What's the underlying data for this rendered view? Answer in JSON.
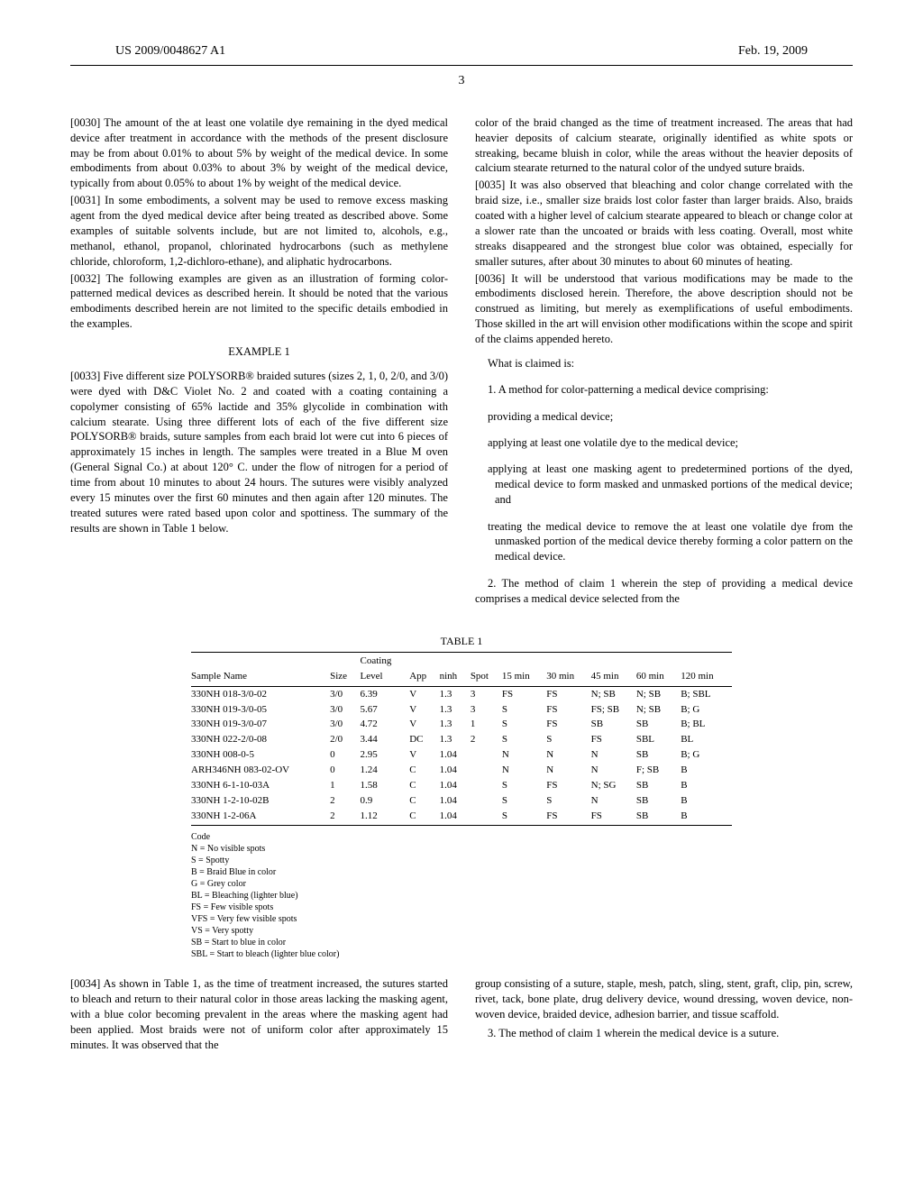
{
  "header": {
    "left": "US 2009/0048627 A1",
    "right": "Feb. 19, 2009",
    "page_number": "3"
  },
  "left_column": {
    "p0030": "[0030]   The amount of the at least one volatile dye remaining in the dyed medical device after treatment in accordance with the methods of the present disclosure may be from about 0.01% to about 5% by weight of the medical device. In some embodiments from about 0.03% to about 3% by weight of the medical device, typically from about 0.05% to about 1% by weight of the medical device.",
    "p0031": "[0031]   In some embodiments, a solvent may be used to remove excess masking agent from the dyed medical device after being treated as described above. Some examples of suitable solvents include, but are not limited to, alcohols, e.g., methanol, ethanol, propanol, chlorinated hydrocarbons (such as methylene chloride, chloroform, 1,2-dichloro-ethane), and aliphatic hydrocarbons.",
    "p0032": "[0032]   The following examples are given as an illustration of forming color-patterned medical devices as described herein. It should be noted that the various embodiments described herein are not limited to the specific details embodied in the examples.",
    "example_title": "EXAMPLE 1",
    "p0033": "[0033]   Five different size POLYSORB® braided sutures (sizes 2, 1, 0, 2/0, and 3/0) were dyed with D&C Violet No. 2 and coated with a coating containing a copolymer consisting of 65% lactide and 35% glycolide in combination with calcium stearate. Using three different lots of each of the five different size POLYSORB® braids, suture samples from each braid lot were cut into 6 pieces of approximately 15 inches in length. The samples were treated in a Blue M oven (General Signal Co.) at about 120° C. under the flow of nitrogen for a period of time from about 10 minutes to about 24 hours. The sutures were visibly analyzed every 15 minutes over the first 60 minutes and then again after 120 minutes. The treated sutures were rated based upon color and spottiness. The summary of the results are shown in Table 1 below."
  },
  "right_column": {
    "cont": "color of the braid changed as the time of treatment increased. The areas that had heavier deposits of calcium stearate, originally identified as white spots or streaking, became bluish in color, while the areas without the heavier deposits of calcium stearate returned to the natural color of the undyed suture braids.",
    "p0035": "[0035]   It was also observed that bleaching and color change correlated with the braid size, i.e., smaller size braids lost color faster than larger braids. Also, braids coated with a higher level of calcium stearate appeared to bleach or change color at a slower rate than the uncoated or braids with less coating. Overall, most white streaks disappeared and the strongest blue color was obtained, especially for smaller sutures, after about 30 minutes to about 60 minutes of heating.",
    "p0036": "[0036]   It will be understood that various modifications may be made to the embodiments disclosed herein. Therefore, the above description should not be construed as limiting, but merely as exemplifications of useful embodiments. Those skilled in the art will envision other modifications within the scope and spirit of the claims appended hereto.",
    "claims_intro": "What is claimed is:",
    "claim1_lead": "1. A method for color-patterning a medical device comprising:",
    "claim1_steps": [
      "providing a medical device;",
      "applying at least one volatile dye to the medical device;",
      "applying at least one masking agent to predetermined portions of the dyed, medical device to form masked and unmasked portions of the medical device; and",
      "treating the medical device to remove the at least one volatile dye from the unmasked portion of the medical device thereby forming a color pattern on the medical device."
    ],
    "claim2": "2. The method of claim 1 wherein the step of providing a medical device comprises a medical device selected from the"
  },
  "table": {
    "title": "TABLE 1",
    "columns": [
      "Sample Name",
      "Size",
      "Coating Level",
      "App",
      "ninh",
      "Spot",
      "15 min",
      "30 min",
      "45 min",
      "60 min",
      "120 min"
    ],
    "rows": [
      [
        "330NH 018-3/0-02",
        "3/0",
        "6.39",
        "V",
        "1.3",
        "3",
        "FS",
        "FS",
        "N; SB",
        "N; SB",
        "B; SBL"
      ],
      [
        "330NH 019-3/0-05",
        "3/0",
        "5.67",
        "V",
        "1.3",
        "3",
        "S",
        "FS",
        "FS; SB",
        "N; SB",
        "B; G"
      ],
      [
        "330NH 019-3/0-07",
        "3/0",
        "4.72",
        "V",
        "1.3",
        "1",
        "S",
        "FS",
        "SB",
        "SB",
        "B; BL"
      ],
      [
        "330NH 022-2/0-08",
        "2/0",
        "3.44",
        "DC",
        "1.3",
        "2",
        "S",
        "S",
        "FS",
        "SBL",
        "BL"
      ],
      [
        "330NH 008-0-5",
        "0",
        "2.95",
        "V",
        "1.04",
        "",
        "N",
        "N",
        "N",
        "SB",
        "B; G"
      ],
      [
        "ARH346NH 083-02-OV",
        "0",
        "1.24",
        "C",
        "1.04",
        "",
        "N",
        "N",
        "N",
        "F; SB",
        "B"
      ],
      [
        "330NH 6-1-10-03A",
        "1",
        "1.58",
        "C",
        "1.04",
        "",
        "S",
        "FS",
        "N; SG",
        "SB",
        "B"
      ],
      [
        "330NH 1-2-10-02B",
        "2",
        "0.9",
        "C",
        "1.04",
        "",
        "S",
        "S",
        "N",
        "SB",
        "B"
      ],
      [
        "330NH 1-2-06A",
        "2",
        "1.12",
        "C",
        "1.04",
        "",
        "S",
        "FS",
        "FS",
        "SB",
        "B"
      ]
    ]
  },
  "code_legend": {
    "title": "Code",
    "lines": [
      "N = No visible spots",
      "S = Spotty",
      "B = Braid Blue in color",
      "G = Grey color",
      "BL = Bleaching (lighter blue)",
      "FS = Few visible spots",
      "VFS = Very few visible spots",
      "VS = Very spotty",
      "SB = Start to blue in color",
      "SBL = Start to bleach (lighter blue color)"
    ]
  },
  "lower_left": {
    "p0034": "[0034]   As shown in Table 1, as the time of treatment increased, the sutures started to bleach and return to their natural color in those areas lacking the masking agent, with a blue color becoming prevalent in the areas where the masking agent had been applied. Most braids were not of uniform color after approximately 15 minutes. It was observed that the"
  },
  "lower_right": {
    "claim2_cont": "group consisting of a suture, staple, mesh, patch, sling, stent, graft, clip, pin, screw, rivet, tack, bone plate, drug delivery device, wound dressing, woven device, non-woven device, braided device, adhesion barrier, and tissue scaffold.",
    "claim3": "3. The method of claim 1 wherein the medical device is a suture."
  }
}
